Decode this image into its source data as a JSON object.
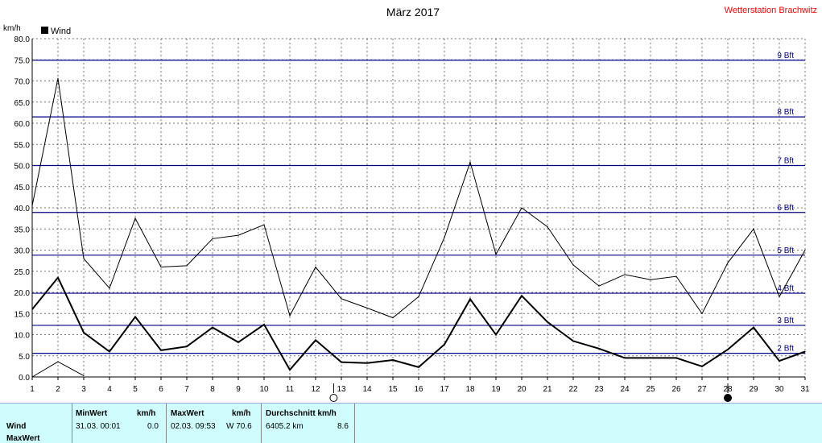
{
  "chart_data": {
    "type": "line",
    "title": "März 2017",
    "station": "Wetterstation Brachwitz",
    "unit_label": "km/h",
    "ylim": [
      0,
      80
    ],
    "xlim": [
      1,
      31
    ],
    "y_ticks": [
      "0.0",
      "5.0",
      "10.0",
      "15.0",
      "20.0",
      "25.0",
      "30.0",
      "35.0",
      "40.0",
      "45.0",
      "50.0",
      "55.0",
      "60.0",
      "65.0",
      "70.0",
      "75.0",
      "80.0"
    ],
    "x_ticks": [
      "1",
      "2",
      "3",
      "4",
      "5",
      "6",
      "7",
      "8",
      "9",
      "10",
      "11",
      "12",
      "13",
      "14",
      "15",
      "16",
      "17",
      "18",
      "19",
      "20",
      "21",
      "22",
      "23",
      "24",
      "25",
      "26",
      "27",
      "28",
      "29",
      "30",
      "31"
    ],
    "grid": true,
    "legend": {
      "position": "top-left",
      "label": "Wind"
    },
    "colors": {
      "max_line": "#000000",
      "avg_line": "#000000",
      "beaufort": "#00008b",
      "station": "#ff0000"
    },
    "beaufort_lines": [
      {
        "label": "2 Bft",
        "value": 5.6
      },
      {
        "label": "3 Bft",
        "value": 12.2
      },
      {
        "label": "4 Bft",
        "value": 19.8
      },
      {
        "label": "5 Bft",
        "value": 28.8
      },
      {
        "label": "6 Bft",
        "value": 38.9
      },
      {
        "label": "7 Bft",
        "value": 50.0
      },
      {
        "label": "8 Bft",
        "value": 61.5
      },
      {
        "label": "9 Bft",
        "value": 74.9
      }
    ],
    "series": [
      {
        "values": [
          40.5,
          70.6,
          28.0,
          21.0,
          37.5,
          26.0,
          26.3,
          32.7,
          33.5,
          36.0,
          14.5,
          26.0,
          18.5,
          16.3,
          14.0,
          19.0,
          33.0,
          50.8,
          29.0,
          40.0,
          35.5,
          26.5,
          21.5,
          24.2,
          23.0,
          23.8,
          15.0,
          27.0,
          35.0,
          19.0,
          30.0
        ]
      },
      {
        "values": [
          16.0,
          23.5,
          10.5,
          6.0,
          14.2,
          6.3,
          7.2,
          11.7,
          8.2,
          12.4,
          1.7,
          8.7,
          3.5,
          3.3,
          4.0,
          2.3,
          7.7,
          18.4,
          10.0,
          19.2,
          13.0,
          8.5,
          6.7,
          4.5,
          4.5,
          4.5,
          2.5,
          6.5,
          11.7,
          3.8,
          6.0
        ]
      },
      {
        "values": [
          0.0,
          3.6,
          0.3,
          null,
          null,
          null,
          null,
          null,
          null,
          null,
          null,
          null,
          null,
          null,
          null,
          null,
          null,
          null,
          null,
          null,
          null,
          null,
          null,
          null,
          null,
          null,
          null,
          null,
          null,
          null,
          null
        ]
      }
    ],
    "moon_phases": [
      {
        "day": 12.7,
        "phase": "full-moon"
      },
      {
        "day": 28.0,
        "phase": "new-moon"
      }
    ]
  },
  "stats": {
    "row_wind": "Wind",
    "row_maxwert": "MaxWert",
    "min_header": "MinWert",
    "min_unit": "km/h",
    "min_datetime": "31.03.  00:01",
    "min_value": "0.0",
    "max_header": "MaxWert",
    "max_unit": "km/h",
    "max_datetime": "02.03.  09:53",
    "max_value": "W 70.6",
    "avg_header": "Durchschnitt km/h",
    "avg_distance": "6405.2 km",
    "avg_value": "8.6"
  }
}
